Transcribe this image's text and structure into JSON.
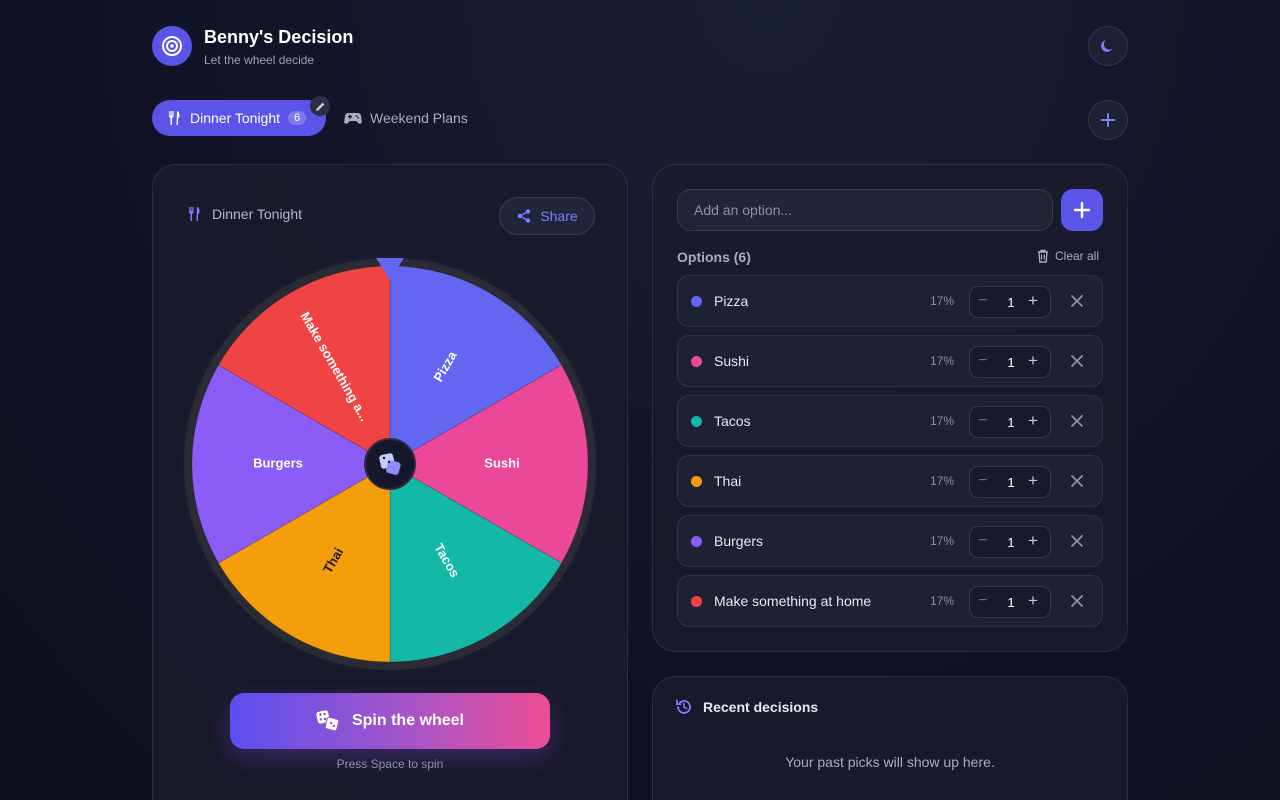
{
  "header": {
    "title": "Benny's Decision",
    "subtitle": "Let the wheel decide"
  },
  "tabs": [
    {
      "label": "Dinner Tonight",
      "count": "6",
      "icon": "utensils-icon",
      "active": true
    },
    {
      "label": "Weekend Plans",
      "icon": "gamepad-icon",
      "active": false
    }
  ],
  "wheel": {
    "list_name": "Dinner Tonight",
    "share_label": "Share",
    "spin_label": "Spin the wheel",
    "spin_hint": "Press Space to spin",
    "segments": [
      {
        "label": "Pizza",
        "color": "#6366f1"
      },
      {
        "label": "Sushi",
        "color": "#ec4899"
      },
      {
        "label": "Tacos",
        "color": "#14b8a6"
      },
      {
        "label": "Thai",
        "color": "#f59e0b"
      },
      {
        "label": "Burgers",
        "color": "#8b5cf6"
      },
      {
        "label": "Make something a...",
        "color": "#ef4444"
      }
    ]
  },
  "options": {
    "input_placeholder": "Add an option...",
    "heading": "Options (6)",
    "clear_label": "Clear all",
    "items": [
      {
        "name": "Pizza",
        "pct": "17%",
        "qty": "1",
        "color": "#6366f1"
      },
      {
        "name": "Sushi",
        "pct": "17%",
        "qty": "1",
        "color": "#ec4899"
      },
      {
        "name": "Tacos",
        "pct": "17%",
        "qty": "1",
        "color": "#14b8a6"
      },
      {
        "name": "Thai",
        "pct": "17%",
        "qty": "1",
        "color": "#f59e0b"
      },
      {
        "name": "Burgers",
        "pct": "17%",
        "qty": "1",
        "color": "#8b5cf6"
      },
      {
        "name": "Make something at home",
        "pct": "17%",
        "qty": "1",
        "color": "#ef4444"
      }
    ]
  },
  "recent": {
    "title": "Recent decisions",
    "empty": "Your past picks will show up here."
  }
}
